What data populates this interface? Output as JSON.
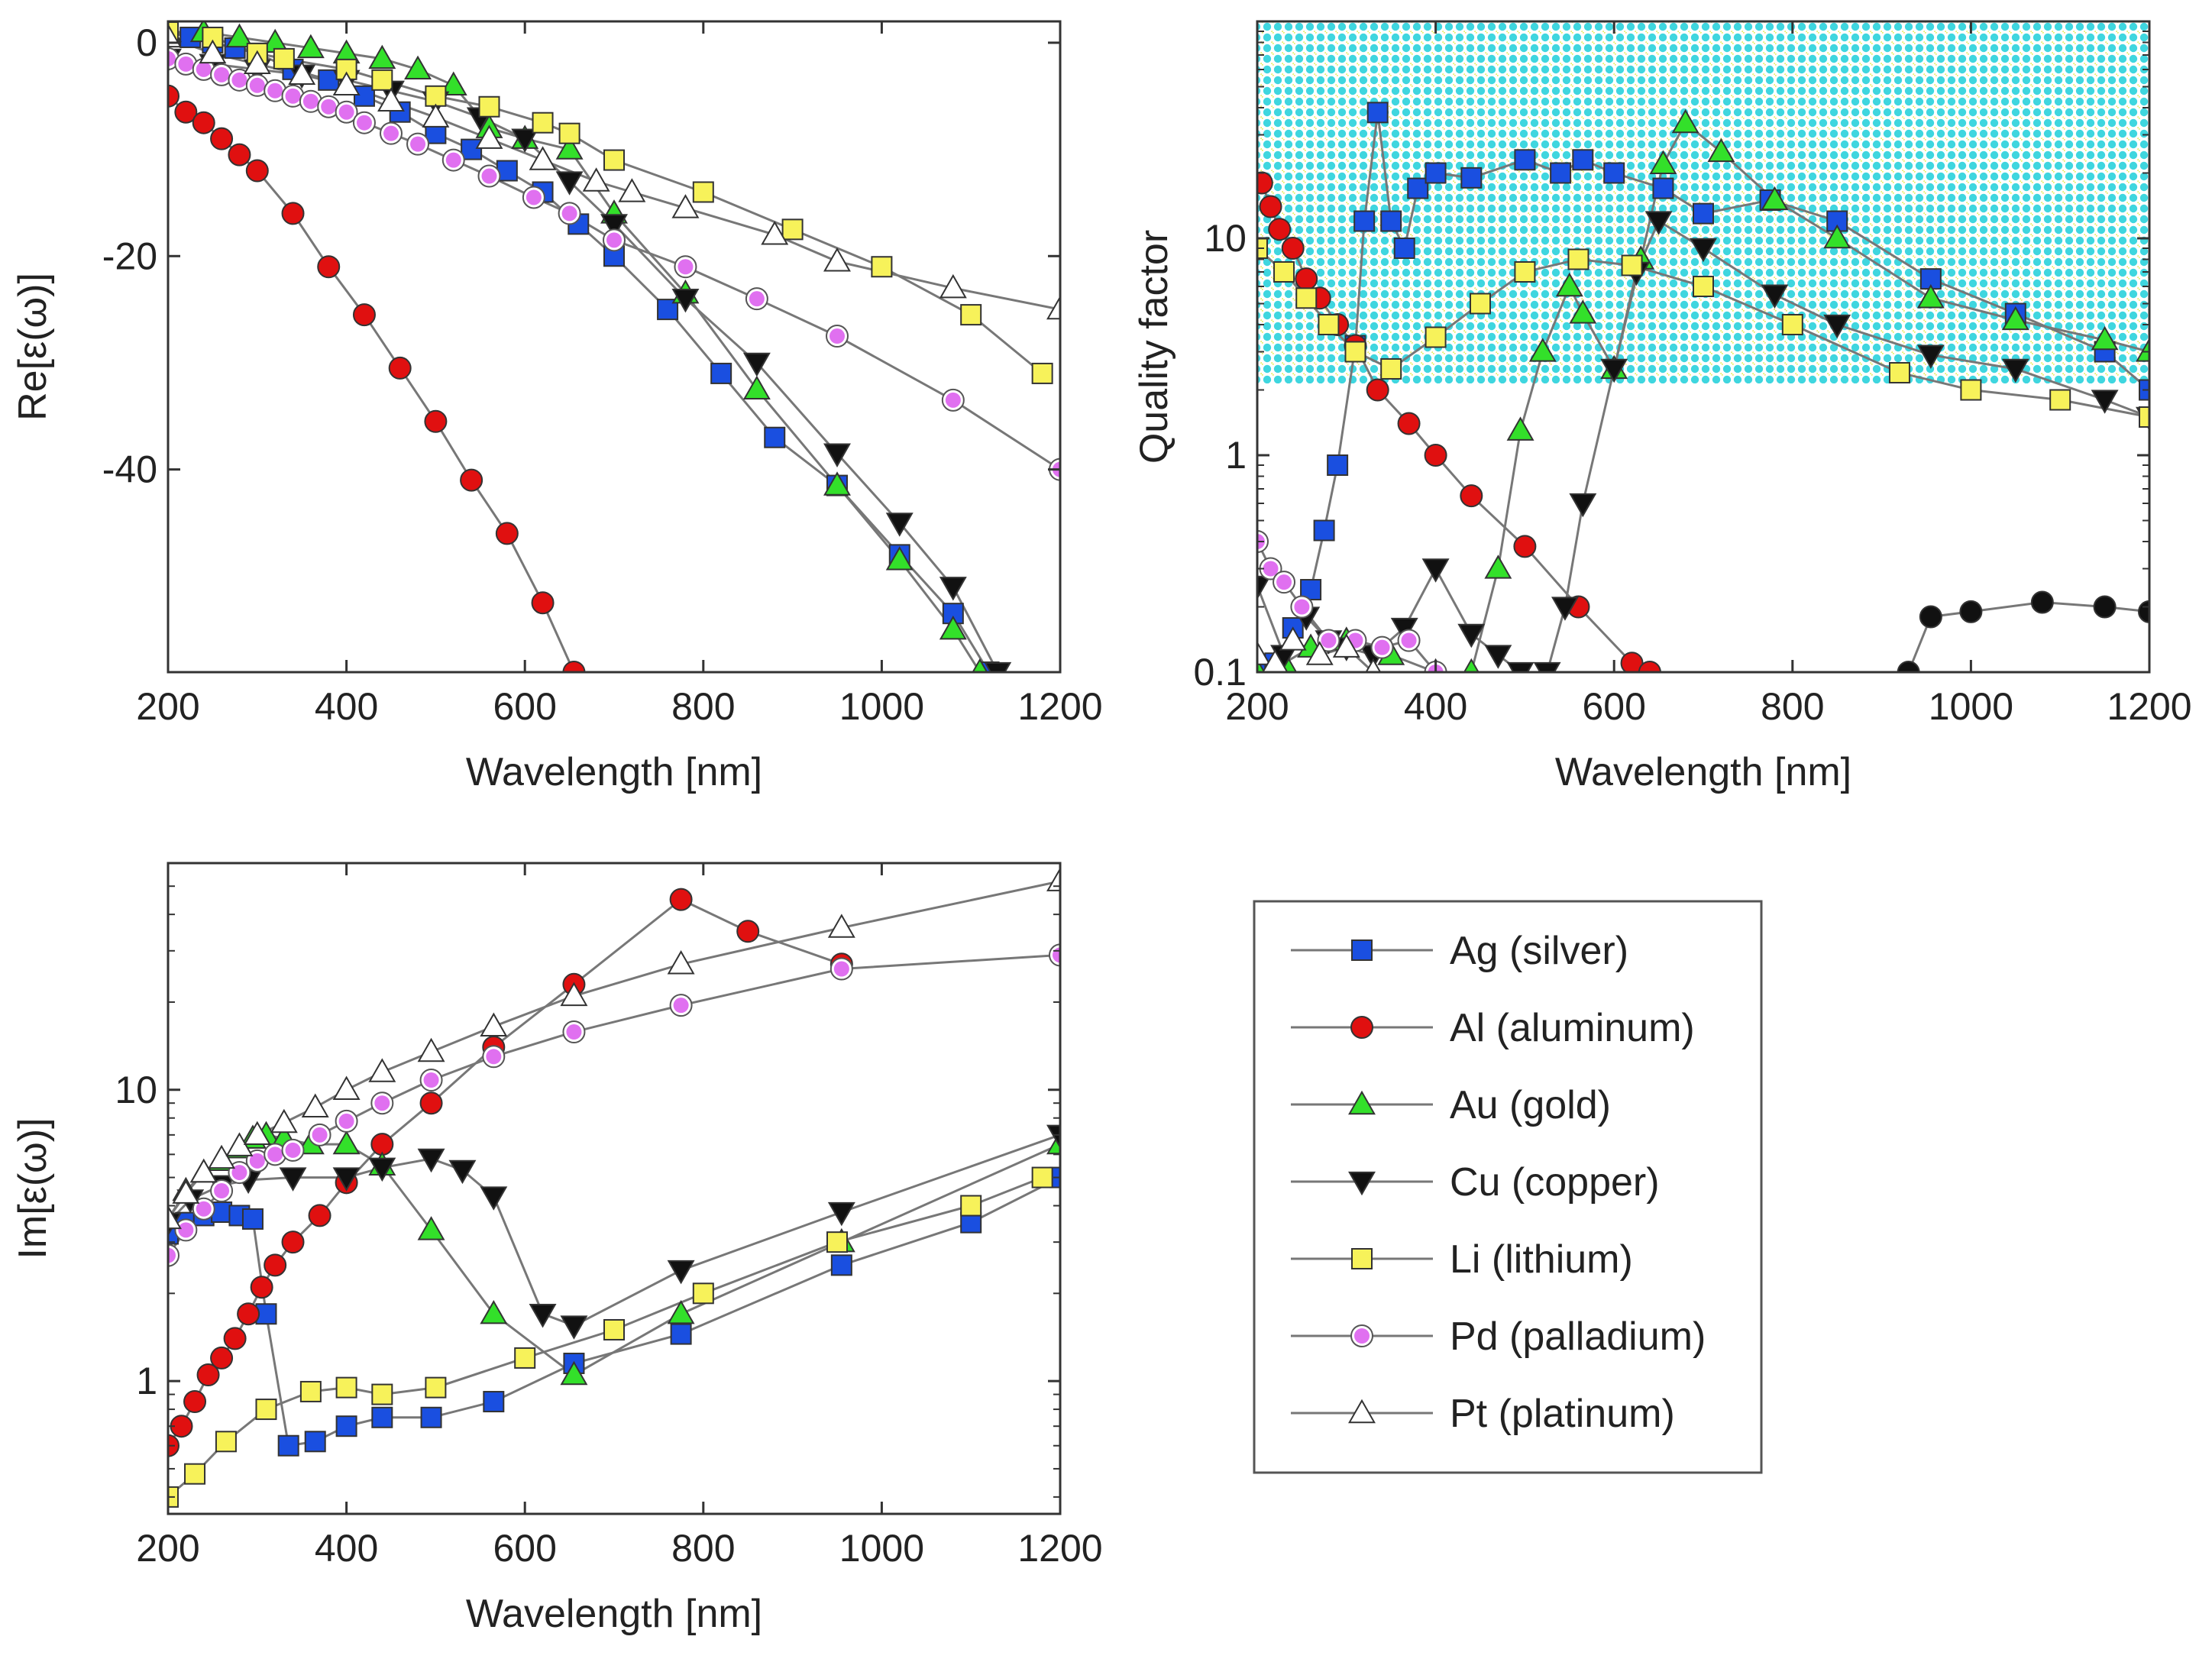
{
  "colors": {
    "Ag": "#1a4fe0",
    "Al": "#e01010",
    "Au": "#33e02a",
    "Cu": "#111111",
    "Li": "#f7f25a",
    "Pd": "#e070f0",
    "Pt": "#ffffff",
    "line": "#777777",
    "hatch_a": "#3fd6df",
    "hatch_b": "#f0f070"
  },
  "legend": {
    "items": [
      {
        "key": "Ag",
        "label": "Ag (silver)",
        "marker": "square"
      },
      {
        "key": "Al",
        "label": "Al (aluminum)",
        "marker": "circle"
      },
      {
        "key": "Au",
        "label": "Au (gold)",
        "marker": "triangle-up"
      },
      {
        "key": "Cu",
        "label": "Cu (copper)",
        "marker": "triangle-down"
      },
      {
        "key": "Li",
        "label": "Li (lithium)",
        "marker": "square"
      },
      {
        "key": "Pd",
        "label": "Pd (palladium)",
        "marker": "dot-circle"
      },
      {
        "key": "Pt",
        "label": "Pt (platinum)",
        "marker": "triangle-up"
      }
    ]
  },
  "chart_data": [
    {
      "id": "re",
      "type": "line",
      "xscale": "linear",
      "yscale": "linear",
      "xlabel": "Wavelength [nm]",
      "ylabel": "Re[ε(ω)]",
      "xlim": [
        200,
        1200
      ],
      "ylim": [
        -59,
        2
      ],
      "xticks": [
        200,
        400,
        600,
        800,
        1000,
        1200
      ],
      "yticks": [
        0,
        -20,
        -40
      ],
      "series": [
        {
          "key": "Ag",
          "x": [
            200,
            225,
            250,
            275,
            300,
            340,
            380,
            420,
            460,
            500,
            540,
            580,
            620,
            660,
            700,
            760,
            820,
            880,
            950,
            1020,
            1080,
            1120
          ],
          "y": [
            1,
            0.5,
            0,
            -0.5,
            -1,
            -2.5,
            -3.5,
            -5,
            -6.5,
            -8.5,
            -10,
            -12,
            -14,
            -17,
            -20,
            -25,
            -31,
            -37,
            -41.5,
            -48,
            -53.5,
            -59
          ]
        },
        {
          "key": "Al",
          "x": [
            200,
            220,
            240,
            260,
            280,
            300,
            340,
            380,
            420,
            460,
            500,
            540,
            580,
            620,
            655
          ],
          "y": [
            -5,
            -6.5,
            -7.5,
            -9,
            -10.5,
            -12,
            -16,
            -21,
            -25.5,
            -30.5,
            -35.5,
            -41,
            -46,
            -52.5,
            -59
          ]
        },
        {
          "key": "Au",
          "x": [
            200,
            240,
            280,
            320,
            360,
            400,
            440,
            480,
            520,
            560,
            600,
            650,
            700,
            780,
            860,
            950,
            1020,
            1080,
            1110
          ],
          "y": [
            1,
            1,
            0.5,
            0,
            -0.5,
            -1,
            -1.5,
            -2.5,
            -4,
            -8,
            -9,
            -10,
            -16,
            -23.5,
            -32.5,
            -41.5,
            -48.5,
            -55,
            -59
          ]
        },
        {
          "key": "Cu",
          "x": [
            200,
            250,
            300,
            350,
            400,
            450,
            500,
            550,
            600,
            650,
            700,
            780,
            860,
            950,
            1020,
            1080,
            1130
          ],
          "y": [
            -1.5,
            -2,
            -2.5,
            -3,
            -3.5,
            -4.5,
            -5.5,
            -7,
            -9,
            -13,
            -17,
            -24,
            -30,
            -38.5,
            -45,
            -51,
            -59
          ]
        },
        {
          "key": "Li",
          "x": [
            200,
            250,
            300,
            330,
            400,
            440,
            500,
            560,
            620,
            650,
            700,
            800,
            900,
            1000,
            1100,
            1180
          ],
          "y": [
            1,
            0.5,
            -1,
            -1.5,
            -2.5,
            -3.5,
            -5,
            -6,
            -7.5,
            -8.5,
            -11,
            -14,
            -17.5,
            -21,
            -25.5,
            -31
          ]
        },
        {
          "key": "Pd",
          "x": [
            200,
            220,
            240,
            260,
            280,
            300,
            320,
            340,
            360,
            380,
            400,
            420,
            450,
            480,
            520,
            560,
            610,
            650,
            700,
            780,
            860,
            950,
            1080,
            1200
          ],
          "y": [
            -1.5,
            -2,
            -2.5,
            -3,
            -3.5,
            -4,
            -4.5,
            -5,
            -5.5,
            -6,
            -6.5,
            -7.5,
            -8.5,
            -9.5,
            -11,
            -12.5,
            -14.5,
            -16,
            -18.5,
            -21,
            -24,
            -27.5,
            -33.5,
            -40
          ]
        },
        {
          "key": "Pt",
          "x": [
            200,
            250,
            300,
            350,
            400,
            450,
            500,
            560,
            620,
            680,
            720,
            780,
            880,
            950,
            1080,
            1200
          ],
          "y": [
            0.5,
            -1,
            -2,
            -3,
            -4,
            -5.5,
            -7,
            -9,
            -11,
            -13,
            -14,
            -15.5,
            -18,
            -20.5,
            -23,
            -25
          ]
        }
      ]
    },
    {
      "id": "q",
      "type": "line",
      "xscale": "linear",
      "yscale": "log",
      "xlabel": "Wavelength [nm]",
      "ylabel": "Quality factor",
      "xlim": [
        200,
        1200
      ],
      "ylim": [
        0.1,
        100
      ],
      "xticks": [
        200,
        400,
        600,
        800,
        1000,
        1200
      ],
      "yticks": [
        0.1,
        1,
        10
      ],
      "series": [
        {
          "key": "Ag",
          "x": [
            200,
            220,
            240,
            260,
            275,
            290,
            310,
            320,
            335,
            350,
            365,
            380,
            400,
            440,
            500,
            540,
            565,
            600,
            655,
            700,
            775,
            850,
            955,
            1050,
            1150,
            1200
          ],
          "y": [
            0.1,
            0.11,
            0.16,
            0.24,
            0.45,
            0.9,
            3.2,
            12,
            38,
            12,
            9,
            17,
            20,
            19,
            23,
            20,
            23,
            20,
            17,
            13,
            15,
            12,
            6.5,
            4.5,
            3,
            2
          ]
        },
        {
          "key": "Al",
          "x": [
            205,
            215,
            225,
            240,
            255,
            270,
            290,
            310,
            335,
            370,
            400,
            440,
            500,
            560,
            620,
            640
          ],
          "y": [
            18,
            14,
            11,
            9,
            6.5,
            5.3,
            4,
            3.2,
            2,
            1.4,
            1,
            0.65,
            0.38,
            0.2,
            0.11,
            0.1
          ]
        },
        {
          "key": "Au",
          "x": [
            200,
            230,
            260,
            300,
            350,
            400,
            440,
            470,
            495,
            520,
            550,
            565,
            600,
            630,
            655,
            680,
            720,
            780,
            850,
            955,
            1050,
            1150,
            1200
          ],
          "y": [
            0.1,
            0.11,
            0.13,
            0.14,
            0.12,
            0.1,
            0.1,
            0.3,
            1.3,
            3,
            6,
            4.5,
            2.5,
            8,
            22,
            34,
            25,
            15,
            10,
            5.3,
            4.2,
            3.4,
            3
          ]
        },
        {
          "key": "Cu",
          "x": [
            200,
            230,
            255,
            280,
            300,
            330,
            365,
            400,
            440,
            470,
            495,
            525,
            545,
            565,
            600,
            625,
            650,
            700,
            780,
            850,
            955,
            1050,
            1150,
            1200
          ],
          "y": [
            0.25,
            0.12,
            0.18,
            0.14,
            0.13,
            0.12,
            0.16,
            0.3,
            0.15,
            0.12,
            0.1,
            0.1,
            0.2,
            0.6,
            2.5,
            7,
            12,
            9,
            5.5,
            4,
            2.9,
            2.5,
            1.8,
            1.5
          ]
        },
        {
          "key": "Li",
          "x": [
            200,
            230,
            255,
            280,
            310,
            350,
            400,
            450,
            500,
            560,
            620,
            700,
            800,
            920,
            1000,
            1100,
            1200
          ],
          "y": [
            9,
            7,
            5.3,
            4,
            3,
            2.5,
            3.5,
            5,
            7,
            8,
            7.5,
            6,
            4,
            2.4,
            2,
            1.8,
            1.5
          ]
        },
        {
          "key": "Pd",
          "x": [
            200,
            215,
            230,
            250,
            280,
            310,
            340,
            370,
            400
          ],
          "y": [
            0.4,
            0.3,
            0.26,
            0.2,
            0.14,
            0.14,
            0.13,
            0.14,
            0.1
          ]
        },
        {
          "key": "Pt",
          "x": [
            200,
            220,
            240,
            270,
            300,
            330
          ],
          "y": [
            0.12,
            0.11,
            0.14,
            0.12,
            0.13,
            0.1
          ]
        },
        {
          "key": "Cu_tail",
          "color_key": "Cu",
          "x": [
            930,
            955,
            1000,
            1080,
            1150,
            1200
          ],
          "y": [
            0.1,
            0.18,
            0.19,
            0.21,
            0.2,
            0.19
          ]
        }
      ]
    },
    {
      "id": "im",
      "type": "line",
      "xscale": "linear",
      "yscale": "log",
      "xlabel": "Wavelength [nm]",
      "ylabel": "Im[ε(ω)]",
      "xlim": [
        200,
        1200
      ],
      "ylim": [
        0.35,
        60
      ],
      "xticks": [
        200,
        400,
        600,
        800,
        1000,
        1200
      ],
      "yticks": [
        1,
        10
      ],
      "series": [
        {
          "key": "Ag",
          "x": [
            200,
            220,
            240,
            260,
            280,
            295,
            310,
            335,
            365,
            400,
            440,
            495,
            565,
            655,
            775,
            955,
            1100,
            1200
          ],
          "y": [
            3.2,
            3.5,
            3.7,
            3.8,
            3.7,
            3.6,
            1.7,
            0.6,
            0.62,
            0.7,
            0.75,
            0.75,
            0.85,
            1.15,
            1.45,
            2.5,
            3.5,
            5
          ]
        },
        {
          "key": "Al",
          "x": [
            200,
            215,
            230,
            245,
            260,
            275,
            290,
            305,
            320,
            340,
            370,
            400,
            440,
            495,
            565,
            655,
            775,
            850,
            955
          ],
          "y": [
            0.6,
            0.7,
            0.85,
            1.05,
            1.2,
            1.4,
            1.7,
            2.1,
            2.5,
            3,
            3.7,
            4.8,
            6.5,
            9,
            14,
            23,
            45,
            35,
            27
          ]
        },
        {
          "key": "Au",
          "x": [
            200,
            220,
            240,
            260,
            280,
            295,
            310,
            330,
            360,
            400,
            440,
            495,
            565,
            655,
            775,
            955,
            1200
          ],
          "y": [
            3.6,
            4.5,
            5.2,
            5.7,
            6.3,
            6.8,
            7,
            6.8,
            6.5,
            6.5,
            5.5,
            3.3,
            1.7,
            1.05,
            1.7,
            3,
            6.5
          ]
        },
        {
          "key": "Cu",
          "x": [
            200,
            225,
            260,
            290,
            340,
            400,
            440,
            495,
            530,
            565,
            620,
            655,
            775,
            955,
            1200
          ],
          "y": [
            3.5,
            4.2,
            4.7,
            4.9,
            5,
            5,
            5.4,
            5.8,
            5.3,
            4.3,
            1.7,
            1.55,
            2.4,
            3.8,
            7
          ]
        },
        {
          "key": "Li",
          "x": [
            200,
            230,
            265,
            310,
            360,
            400,
            440,
            500,
            600,
            700,
            800,
            950,
            1100,
            1180
          ],
          "y": [
            0.4,
            0.48,
            0.62,
            0.8,
            0.92,
            0.95,
            0.9,
            0.95,
            1.2,
            1.5,
            2.0,
            3,
            4,
            5
          ]
        },
        {
          "key": "Pd",
          "x": [
            200,
            220,
            240,
            260,
            280,
            300,
            320,
            340,
            370,
            400,
            440,
            495,
            565,
            655,
            775,
            955,
            1200
          ],
          "y": [
            2.7,
            3.3,
            3.9,
            4.5,
            5.2,
            5.7,
            6.0,
            6.2,
            7,
            7.8,
            9,
            10.8,
            13,
            15.8,
            19.5,
            26,
            29
          ]
        },
        {
          "key": "Pt",
          "x": [
            200,
            220,
            240,
            260,
            280,
            300,
            330,
            365,
            400,
            440,
            495,
            565,
            655,
            775,
            955,
            1200
          ],
          "y": [
            3.6,
            4.4,
            5.2,
            5.8,
            6.4,
            7,
            7.7,
            8.7,
            10,
            11.5,
            13.5,
            16.5,
            21,
            27,
            36,
            52
          ]
        }
      ]
    }
  ]
}
